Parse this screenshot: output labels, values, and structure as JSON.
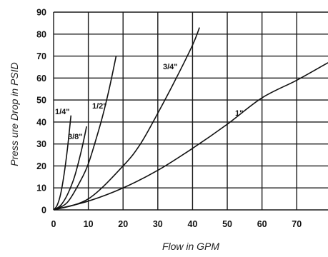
{
  "chart_data": {
    "type": "line",
    "xlabel": "Flow in GPM",
    "ylabel": "Press ure Drop in PSID",
    "xlim": [
      0,
      79
    ],
    "ylim": [
      0,
      90
    ],
    "xticks": [
      0,
      10,
      20,
      30,
      40,
      50,
      60,
      70
    ],
    "yticks": [
      0,
      10,
      20,
      30,
      40,
      50,
      60,
      70,
      80,
      90
    ],
    "grid": true,
    "series": [
      {
        "name": "1/4\"",
        "x": [
          0,
          1,
          2,
          3,
          4,
          5
        ],
        "y": [
          0,
          2,
          7,
          16,
          28,
          43
        ]
      },
      {
        "name": "3/8\"",
        "x": [
          0,
          2,
          4,
          6,
          8,
          9.5
        ],
        "y": [
          0,
          2,
          7,
          15,
          27,
          38
        ]
      },
      {
        "name": "1/2\"",
        "x": [
          0,
          4,
          8,
          10,
          12,
          14,
          16,
          18
        ],
        "y": [
          0,
          3.5,
          14,
          21,
          31,
          42,
          55,
          70
        ]
      },
      {
        "name": "3/4\"",
        "x": [
          0,
          10,
          20,
          25,
          30,
          35,
          40,
          42
        ],
        "y": [
          0,
          5,
          20,
          30,
          44,
          59,
          75,
          83
        ]
      },
      {
        "name": "1\"",
        "x": [
          0,
          10,
          20,
          30,
          40,
          50,
          60,
          70,
          79
        ],
        "y": [
          0,
          4,
          10,
          18,
          28,
          39,
          51,
          59,
          67
        ]
      }
    ],
    "curve_labels": [
      "1/4\"",
      "3/8\"",
      "1/2\"",
      "3/4\"",
      "1\""
    ]
  }
}
